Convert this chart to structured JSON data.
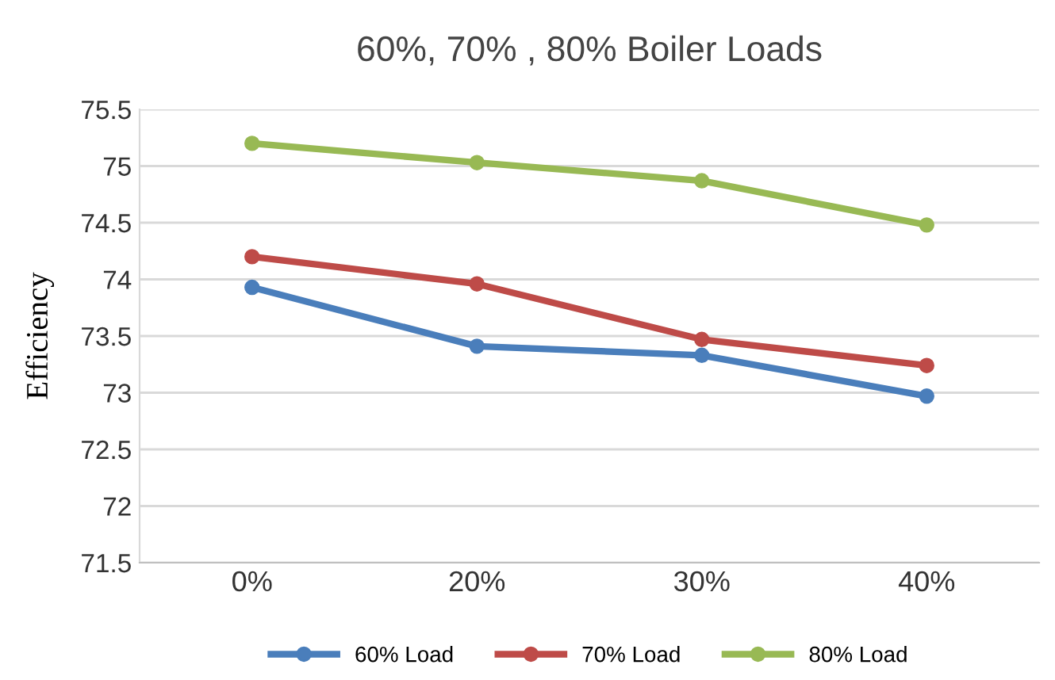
{
  "chart_data": {
    "type": "line",
    "title": "60%, 70% , 80% Boiler Loads",
    "ylabel": "Efficiency",
    "categories": [
      "0%",
      "20%",
      "30%",
      "40%"
    ],
    "series": [
      {
        "name": "60% Load",
        "color": "#4a7ebb",
        "values": [
          73.93,
          73.41,
          73.33,
          72.97
        ]
      },
      {
        "name": "70% Load",
        "color": "#be4b48",
        "values": [
          74.2,
          73.96,
          73.47,
          73.24
        ]
      },
      {
        "name": "80% Load",
        "color": "#98b954",
        "values": [
          75.2,
          75.03,
          74.87,
          74.48
        ]
      }
    ],
    "ylim": [
      71.5,
      75.5
    ],
    "yticks": [
      71.5,
      72,
      72.5,
      73,
      73.5,
      74,
      74.5,
      75,
      75.5
    ],
    "grid": "y",
    "legend": "bottom",
    "marker": "circle",
    "line_style": "solid"
  }
}
